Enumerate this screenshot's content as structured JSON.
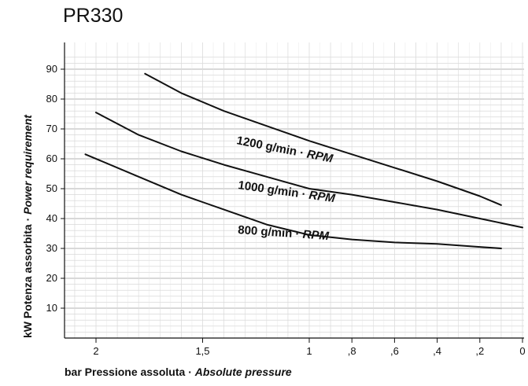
{
  "chart_data": {
    "type": "line",
    "title": "PR330",
    "ylabel_main": "kW Potenza assorbita",
    "ylabel_sep": "·",
    "ylabel_en": "Power requirement",
    "xlabel_main": "bar Pressione assoluta",
    "xlabel_sep": "·",
    "xlabel_en": "Absolute pressure",
    "x_reversed": true,
    "xlim": [
      2.2,
      0
    ],
    "ylim": [
      0,
      95
    ],
    "x_ticks": [
      {
        "value": 2,
        "label": "2"
      },
      {
        "value": 1.5,
        "label": "1,5"
      },
      {
        "value": 1,
        "label": "1"
      },
      {
        "value": 0.8,
        "label": ",8"
      },
      {
        "value": 0.6,
        "label": ",6"
      },
      {
        "value": 0.4,
        "label": ",4"
      },
      {
        "value": 0.2,
        "label": ",2"
      },
      {
        "value": 0,
        "label": "0"
      }
    ],
    "y_ticks": [
      10,
      20,
      30,
      40,
      50,
      60,
      70,
      80,
      90
    ],
    "grid": true,
    "series": [
      {
        "name_main": "1200 g/min",
        "name_sep": "·",
        "name_en": "RPM",
        "x": [
          1.77,
          1.6,
          1.4,
          1.2,
          1.0,
          0.8,
          0.6,
          0.4,
          0.2,
          0.1
        ],
        "y": [
          88.5,
          82,
          76,
          71,
          66,
          61.5,
          57,
          52.5,
          47.5,
          44.5
        ]
      },
      {
        "name_main": "1000 g/min",
        "name_sep": "·",
        "name_en": "RPM",
        "x": [
          2.0,
          1.8,
          1.6,
          1.4,
          1.2,
          1.0,
          0.8,
          0.6,
          0.4,
          0.2,
          0.0
        ],
        "y": [
          75.5,
          68,
          62.5,
          58,
          54,
          50,
          48,
          45.5,
          43,
          40,
          37
        ]
      },
      {
        "name_main": "800 g/min",
        "name_sep": "·",
        "name_en": "RPM",
        "x": [
          2.05,
          1.8,
          1.6,
          1.4,
          1.2,
          1.0,
          0.8,
          0.6,
          0.4,
          0.2,
          0.1
        ],
        "y": [
          61.5,
          54,
          48,
          43,
          38,
          34.5,
          33,
          32,
          31.5,
          30.5,
          30
        ]
      }
    ]
  }
}
